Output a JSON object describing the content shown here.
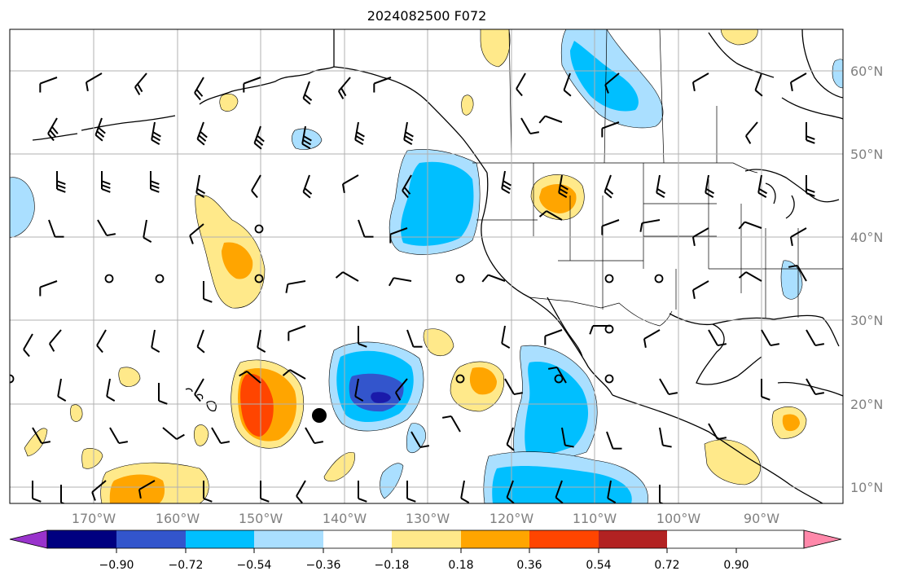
{
  "title": "2024082500 F072",
  "map": {
    "lon_labels": [
      "170°W",
      "160°W",
      "150°W",
      "140°W",
      "130°W",
      "120°W",
      "110°W",
      "100°W",
      "90°W"
    ],
    "lat_labels": [
      "60°N",
      "50°N",
      "40°N",
      "30°N",
      "20°N",
      "10°N"
    ]
  },
  "colorbar": {
    "ticks": [
      "−0.90",
      "−0.72",
      "−0.54",
      "−0.36",
      "−0.18",
      "0.18",
      "0.36",
      "0.54",
      "0.72",
      "0.90"
    ],
    "colors": [
      "#9933cc",
      "#000080",
      "#3355cc",
      "#00bfff",
      "#aadfff",
      "#ffffff",
      "#ffe98a",
      "#ffa500",
      "#ff4500",
      "#b22222",
      "#ff88aa"
    ]
  },
  "colors": {
    "strong_negative": "#3355cc",
    "darkest_negative": "#1a1aaa",
    "negative": "#00bfff",
    "weak_negative": "#aadfff",
    "weak_positive": "#ffe98a",
    "positive": "#ffa500",
    "strong_positive": "#ff4500",
    "grid": "#b0b0b0",
    "lat_lon_labels": "#808080"
  }
}
